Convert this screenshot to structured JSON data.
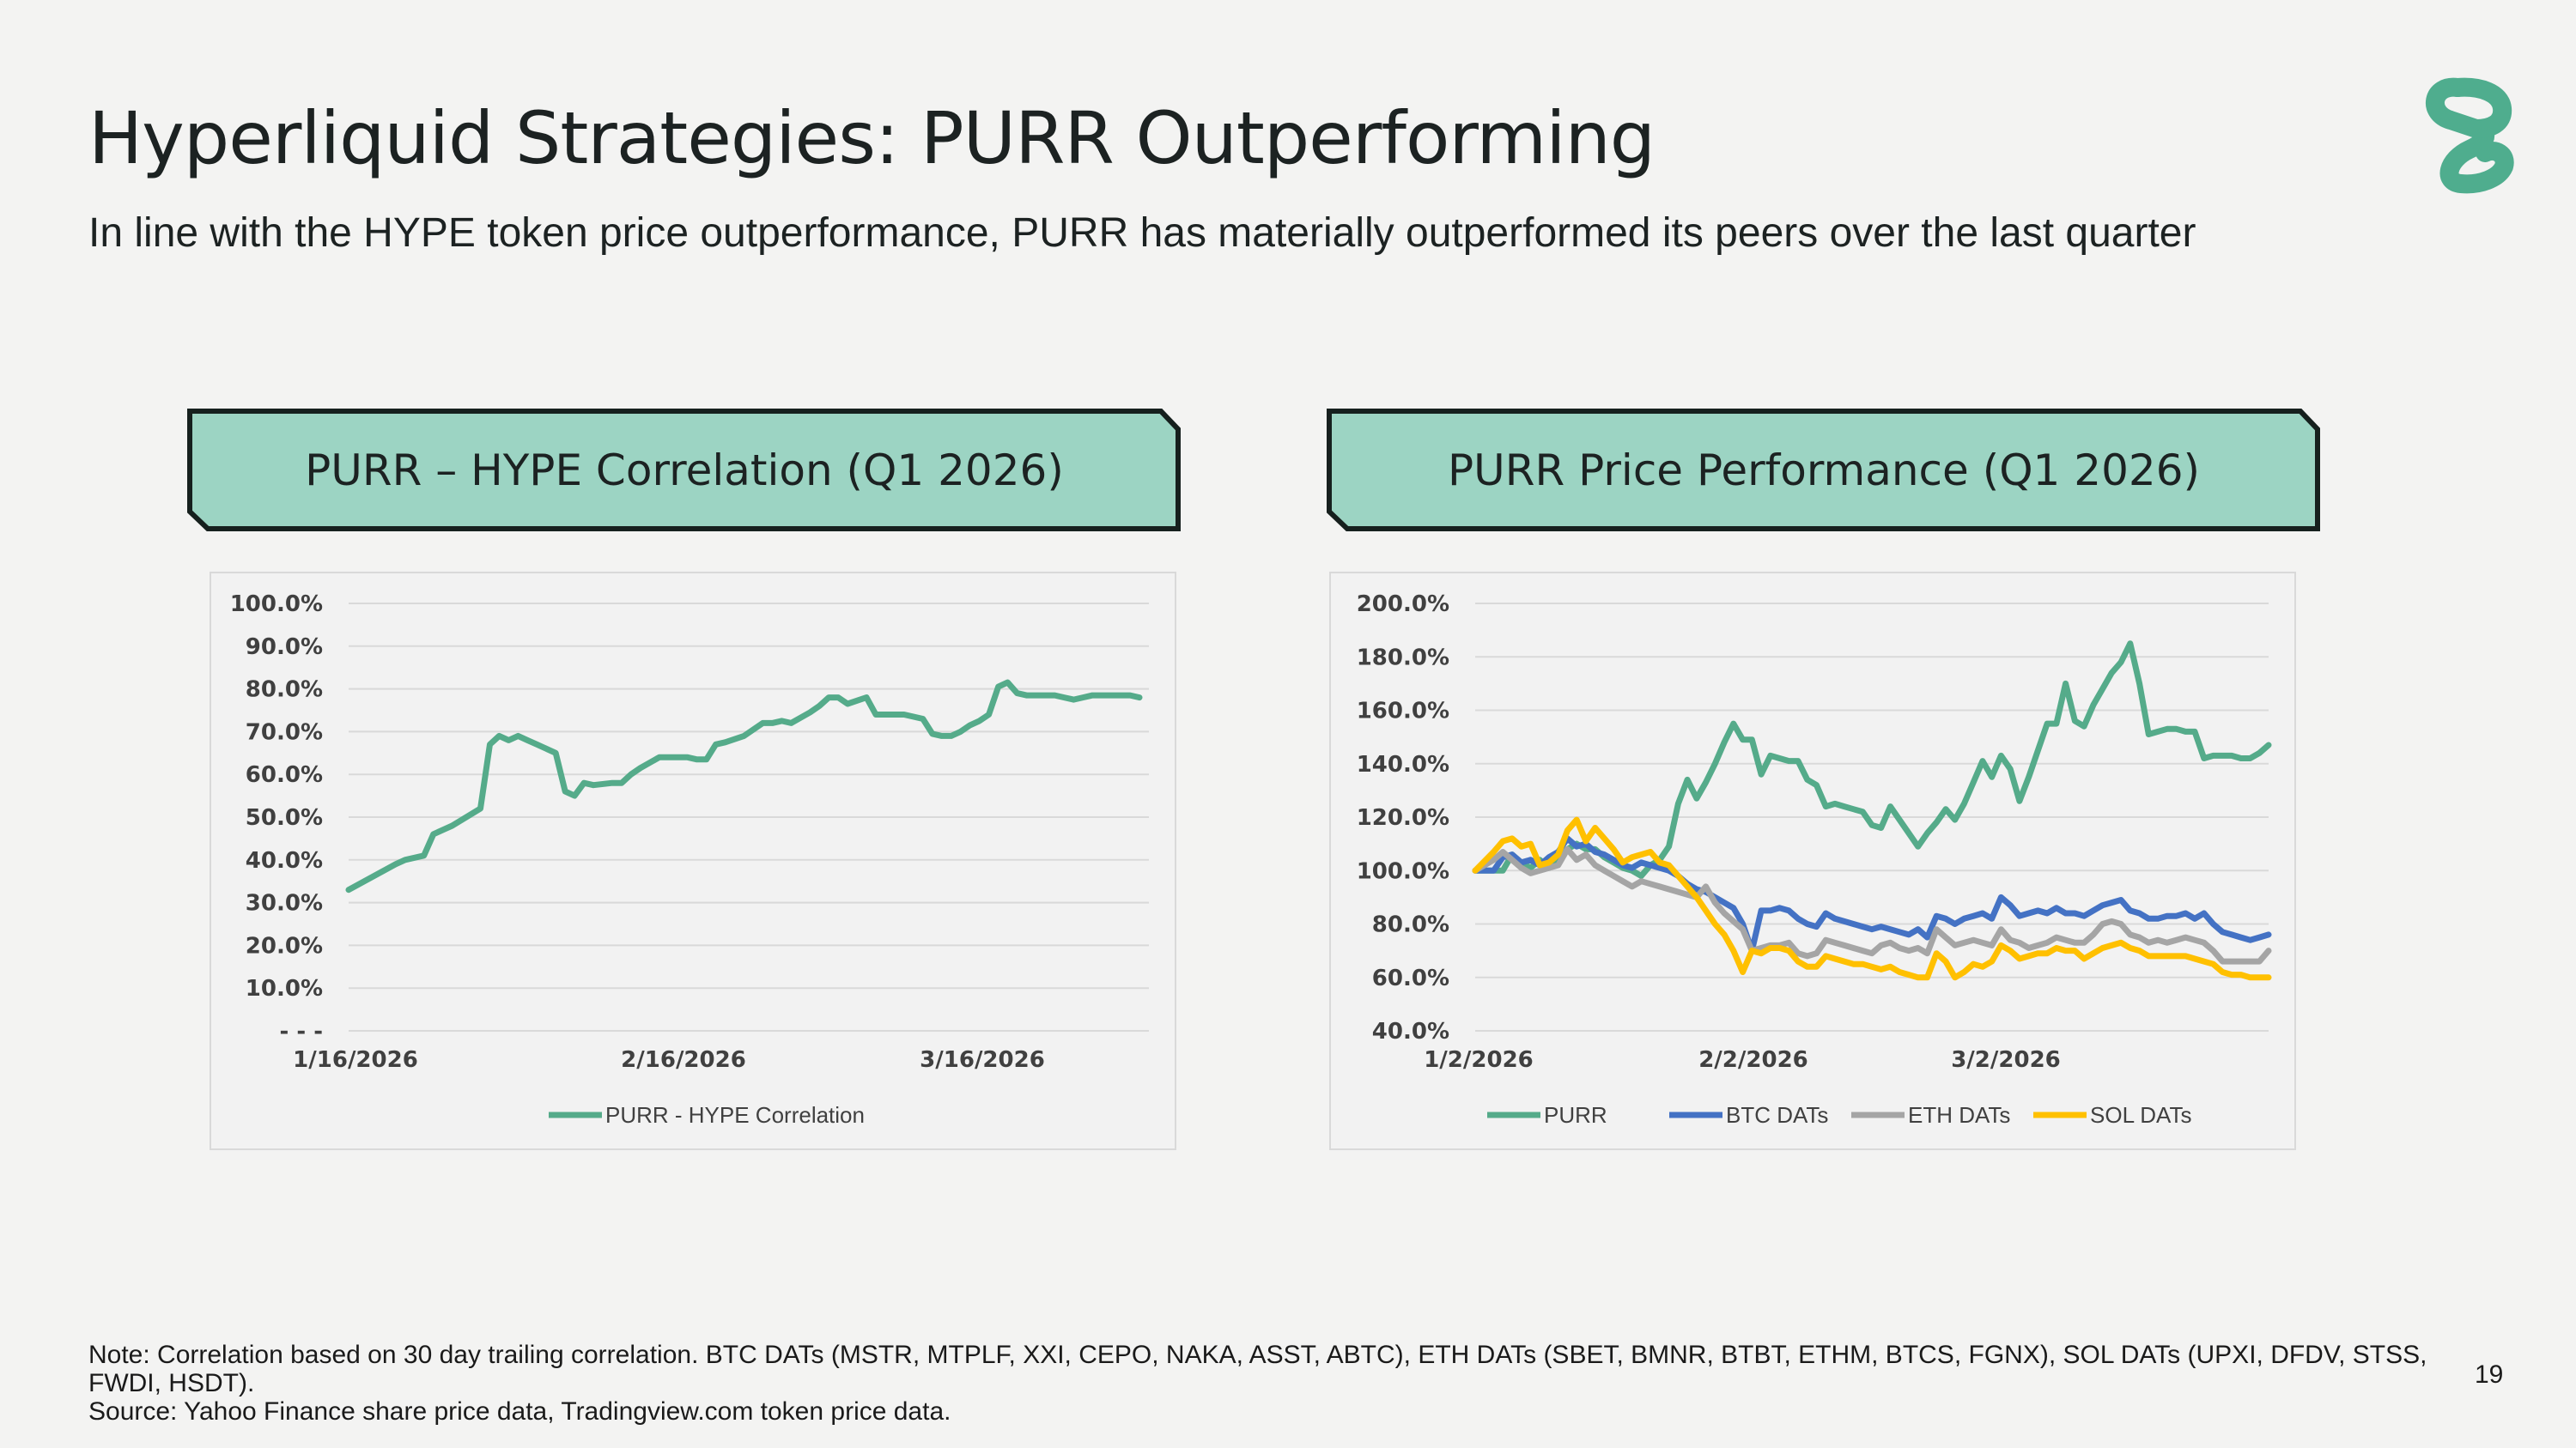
{
  "header": {
    "title": "Hyperliquid Strategies: PURR Outperforming",
    "subtitle": "In line with the HYPE token price outperformance, PURR has materially outperformed its peers over the last quarter"
  },
  "colors": {
    "accent": "#4fad8e",
    "banner_fill": "#9cd4c3",
    "banner_border": "#16201e",
    "purr": "#55ab8a",
    "btc": "#4472c4",
    "eth": "#a5a5a5",
    "sol": "#ffc000"
  },
  "logo": {
    "icon": "hyperliquid-strategies-logo-icon"
  },
  "banners": {
    "left": "PURR – HYPE Correlation (Q1 2026)",
    "right": "PURR Price Performance (Q1 2026)"
  },
  "chart_data": [
    {
      "type": "line",
      "x_labels": [
        "1/16/2026",
        "2/16/2026",
        "3/16/2026"
      ],
      "y_ticks": [
        "- - -",
        "10.0%",
        "20.0%",
        "30.0%",
        "40.0%",
        "50.0%",
        "60.0%",
        "70.0%",
        "80.0%",
        "90.0%",
        "100.0%"
      ],
      "ylim": [
        0,
        100
      ],
      "xlim": [
        0,
        85
      ],
      "grid": true,
      "legend": "bottom",
      "series": [
        {
          "name": "PURR - HYPE Correlation",
          "color": "#55ab8a",
          "x": [
            0,
            5,
            6,
            8,
            9,
            10,
            11,
            14,
            15,
            16,
            17,
            18,
            19,
            20,
            22,
            23,
            24,
            25,
            26,
            28,
            29,
            30,
            31,
            33,
            34,
            36,
            37,
            38,
            39,
            40,
            42,
            44,
            45,
            46,
            47,
            49,
            50,
            51,
            52,
            53,
            55,
            56,
            57,
            58,
            59,
            60,
            61,
            62,
            63,
            64,
            65,
            66,
            67,
            68,
            69,
            70,
            71,
            72,
            73,
            74,
            75,
            76,
            77,
            78,
            79,
            80,
            81,
            82,
            83,
            84
          ],
          "y": [
            33,
            39,
            40,
            41,
            46,
            47,
            48,
            52,
            67,
            69,
            68,
            69,
            68,
            67,
            65,
            56,
            55,
            58,
            57.5,
            58,
            58,
            60,
            61.5,
            64,
            64,
            64,
            63.5,
            63.5,
            67,
            67.5,
            69,
            72,
            72,
            72.5,
            72,
            74.5,
            76,
            78,
            78,
            76.5,
            78,
            74,
            74,
            74,
            74,
            73.5,
            73,
            69.5,
            69,
            69,
            70,
            71.5,
            72.5,
            74,
            80.5,
            81.5,
            79,
            78.5,
            78.5,
            78.5,
            78.5,
            78,
            77.5,
            78,
            78.5,
            78.5,
            78.5,
            78.5,
            78.5,
            78
          ]
        }
      ]
    },
    {
      "type": "line",
      "x_labels": [
        "1/2/2026",
        "2/2/2026",
        "3/2/2026"
      ],
      "y_ticks": [
        "40.0%",
        "60.0%",
        "80.0%",
        "100.0%",
        "120.0%",
        "140.0%",
        "160.0%",
        "180.0%",
        "200.0%"
      ],
      "ylim": [
        40,
        200
      ],
      "xlim": [
        0,
        86
      ],
      "grid": true,
      "legend": "bottom",
      "series": [
        {
          "name": "PURR",
          "color": "#55ab8a",
          "x": [
            0,
            3,
            4,
            5,
            6,
            7,
            8,
            9,
            10,
            11,
            12,
            13,
            14,
            15,
            16,
            17,
            18,
            19,
            20,
            21,
            22,
            23,
            24,
            25,
            26,
            27,
            28,
            29,
            30,
            31,
            32,
            33,
            34,
            35,
            36,
            37,
            38,
            39,
            40,
            41,
            42,
            43,
            44,
            45,
            46,
            47,
            48,
            49,
            50,
            51,
            52,
            53,
            54,
            55,
            56,
            57,
            58,
            59,
            60,
            61,
            62,
            63,
            64,
            65,
            66,
            67,
            68,
            69,
            70,
            71,
            72,
            73,
            74,
            75,
            76,
            77,
            78,
            79,
            80,
            81,
            82,
            83,
            84,
            85,
            86
          ],
          "y": [
            100,
            100,
            106,
            103,
            101,
            104,
            101,
            103,
            108,
            110,
            108,
            108,
            105,
            103,
            101,
            100,
            98,
            102,
            104,
            109,
            125,
            134,
            127,
            133,
            140,
            148,
            155,
            149,
            149,
            136,
            143,
            142,
            141,
            141,
            134,
            132,
            124,
            125,
            124,
            123,
            122,
            117,
            116,
            124,
            119,
            114,
            109,
            114,
            118,
            123,
            119,
            125,
            133,
            141,
            135,
            143,
            138,
            126,
            135,
            145,
            155,
            155,
            170,
            156,
            154,
            162,
            168,
            174,
            178,
            185,
            170,
            151,
            152,
            153,
            153,
            152,
            152,
            142,
            143,
            143,
            143,
            142,
            142,
            144,
            147
          ]
        },
        {
          "name": "BTC DATs",
          "color": "#4472c4",
          "x": [
            0,
            2,
            3,
            4,
            5,
            6,
            7,
            8,
            9,
            10,
            11,
            12,
            13,
            14,
            15,
            16,
            17,
            18,
            19,
            20,
            21,
            22,
            23,
            24,
            25,
            26,
            27,
            28,
            29,
            30,
            31,
            32,
            33,
            34,
            35,
            36,
            37,
            38,
            39,
            40,
            41,
            42,
            43,
            44,
            45,
            46,
            47,
            48,
            49,
            50,
            51,
            52,
            53,
            54,
            55,
            56,
            57,
            58,
            59,
            60,
            61,
            62,
            63,
            64,
            65,
            66,
            67,
            68,
            69,
            70,
            71,
            72,
            73,
            74,
            75,
            76,
            77,
            78,
            79,
            80,
            81,
            82,
            83,
            84,
            85,
            86
          ],
          "y": [
            100,
            100,
            105,
            106,
            103,
            104,
            102,
            105,
            107,
            112,
            109,
            110,
            107,
            106,
            104,
            102,
            101,
            103,
            102,
            101,
            100,
            98,
            95,
            93,
            92,
            90,
            88,
            86,
            80,
            70,
            85,
            85,
            86,
            85,
            82,
            80,
            79,
            84,
            82,
            81,
            80,
            79,
            78,
            79,
            78,
            77,
            76,
            78,
            75,
            83,
            82,
            80,
            82,
            83,
            84,
            82,
            90,
            87,
            83,
            84,
            85,
            84,
            86,
            84,
            84,
            83,
            85,
            87,
            88,
            89,
            85,
            84,
            82,
            82,
            83,
            83,
            84,
            82,
            84,
            80,
            77,
            76,
            75,
            74,
            75,
            76
          ]
        },
        {
          "name": "ETH DATs",
          "color": "#a5a5a5",
          "x": [
            0,
            2,
            3,
            4,
            5,
            6,
            7,
            8,
            9,
            10,
            11,
            12,
            13,
            14,
            15,
            16,
            17,
            18,
            19,
            20,
            21,
            22,
            23,
            24,
            25,
            26,
            27,
            28,
            29,
            30,
            31,
            32,
            33,
            34,
            35,
            36,
            37,
            38,
            39,
            40,
            41,
            42,
            43,
            44,
            45,
            46,
            47,
            48,
            49,
            50,
            51,
            52,
            53,
            54,
            55,
            56,
            57,
            58,
            59,
            60,
            61,
            62,
            63,
            64,
            65,
            66,
            67,
            68,
            69,
            70,
            71,
            72,
            73,
            74,
            75,
            76,
            77,
            78,
            79,
            80,
            81,
            82,
            83,
            84,
            85,
            86
          ],
          "y": [
            100,
            104,
            107,
            104,
            101,
            99,
            100,
            101,
            102,
            108,
            104,
            106,
            102,
            100,
            98,
            96,
            94,
            96,
            95,
            94,
            93,
            92,
            91,
            90,
            94,
            88,
            84,
            81,
            78,
            70,
            71,
            72,
            72,
            73,
            69,
            68,
            69,
            74,
            73,
            72,
            71,
            70,
            69,
            72,
            73,
            71,
            70,
            71,
            69,
            78,
            75,
            72,
            73,
            74,
            73,
            72,
            78,
            74,
            73,
            71,
            72,
            73,
            75,
            74,
            73,
            73,
            76,
            80,
            81,
            80,
            76,
            75,
            73,
            74,
            73,
            74,
            75,
            74,
            73,
            70,
            66,
            66,
            66,
            66,
            66,
            70
          ]
        },
        {
          "name": "SOL DATs",
          "color": "#ffc000",
          "x": [
            0,
            2,
            3,
            4,
            5,
            6,
            7,
            8,
            9,
            10,
            11,
            12,
            13,
            14,
            15,
            16,
            17,
            18,
            19,
            20,
            21,
            22,
            23,
            24,
            25,
            26,
            27,
            28,
            29,
            30,
            31,
            32,
            33,
            34,
            35,
            36,
            37,
            38,
            39,
            40,
            41,
            42,
            43,
            44,
            45,
            46,
            47,
            48,
            49,
            50,
            51,
            52,
            53,
            54,
            55,
            56,
            57,
            58,
            59,
            60,
            61,
            62,
            63,
            64,
            65,
            66,
            67,
            68,
            69,
            70,
            71,
            72,
            73,
            74,
            75,
            76,
            77,
            78,
            79,
            80,
            81,
            82,
            83,
            84,
            85,
            86
          ],
          "y": [
            100,
            107,
            111,
            112,
            109,
            110,
            102,
            103,
            106,
            115,
            119,
            111,
            116,
            112,
            108,
            103,
            105,
            106,
            107,
            103,
            102,
            98,
            94,
            90,
            85,
            80,
            76,
            70,
            62,
            70,
            69,
            71,
            71,
            70,
            66,
            64,
            64,
            68,
            67,
            66,
            65,
            65,
            64,
            63,
            64,
            62,
            61,
            60,
            60,
            69,
            66,
            60,
            62,
            65,
            64,
            66,
            72,
            70,
            67,
            68,
            69,
            69,
            71,
            70,
            70,
            67,
            69,
            71,
            72,
            73,
            71,
            70,
            68,
            68,
            68,
            68,
            68,
            67,
            66,
            65,
            62,
            61,
            61,
            60,
            60,
            60
          ]
        }
      ]
    }
  ],
  "footnote": {
    "note": "Note: Correlation based on 30 day trailing correlation. BTC DATs (MSTR, MTPLF, XXI, CEPO, NAKA, ASST, ABTC), ETH DATs (SBET, BMNR, BTBT, ETHM, BTCS, FGNX), SOL DATs (UPXI, DFDV, STSS, FWDI, HSDT).",
    "source": "Source: Yahoo Finance share price data, Tradingview.com token price data."
  },
  "page_number": "19"
}
